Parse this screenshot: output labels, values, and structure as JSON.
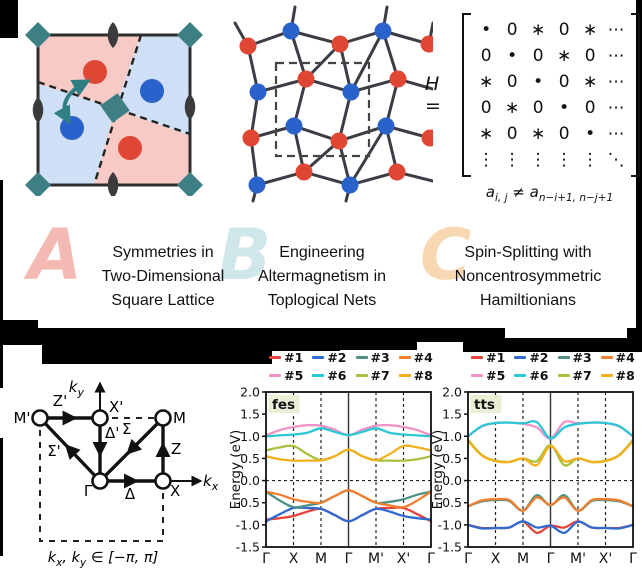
{
  "figure": {
    "panels": [
      {
        "id": "a",
        "letter": "A",
        "letter_color": "#f4b9b3",
        "caption_lines": [
          "Symmetries in",
          "Two-Dimensional",
          "Square Lattice"
        ]
      },
      {
        "id": "b",
        "letter": "B",
        "letter_color": "#cfe6ea",
        "caption_lines": [
          "Engineering",
          "Altermagnetism in",
          "Toplogical Nets"
        ]
      },
      {
        "id": "c",
        "letter": "C",
        "letter_color": "#f8d8b2",
        "caption_lines": [
          "Spin-Splitting with",
          "Noncentrosymmetric",
          "Hamiltionians"
        ]
      }
    ],
    "hamiltonian": {
      "label_h": "H",
      "label_eq": "=",
      "matrix_rows": [
        [
          "•",
          "0",
          "∗",
          "0",
          "∗",
          "⋯"
        ],
        [
          "0",
          "•",
          "0",
          "∗",
          "0",
          "⋯"
        ],
        [
          "∗",
          "0",
          "•",
          "0",
          "∗",
          "⋯"
        ],
        [
          "0",
          "∗",
          "0",
          "•",
          "0",
          "⋯"
        ],
        [
          "∗",
          "0",
          "∗",
          "0",
          "•",
          "⋯"
        ],
        [
          "⋮",
          "⋮",
          "⋮",
          "⋮",
          "⋮",
          "⋱"
        ]
      ],
      "condition": {
        "a1": "a",
        "sub1": "i, j",
        "neq": " ≠ ",
        "a2": "a",
        "sub2": "n−i+1, n−j+1"
      }
    },
    "bz": {
      "ky": {
        "base": "k",
        "sub": "y"
      },
      "kx": {
        "base": "k",
        "sub": "x"
      },
      "points": {
        "mp": "M'",
        "xp": "X'",
        "m": "M",
        "g": "Γ",
        "x": "X"
      },
      "path_labels": {
        "zp": "Z'",
        "dp": "Δ'",
        "sig": "Σ",
        "z": "Z",
        "sigp": "Σ'",
        "d": "Δ"
      },
      "footer": {
        "t1": "k",
        "s1": "x",
        "t2": ", k",
        "s2": "y",
        "t3": " ∈ [−π, π]"
      }
    }
  },
  "chart_data": [
    {
      "type": "line",
      "title": "fes",
      "ylabel": "Energy (eV)",
      "ylim": [
        -1.5,
        2.0
      ],
      "yticks": [
        "2.0",
        "1.5",
        "1.0",
        "0.5",
        "0.0",
        "-0.5",
        "-1.0",
        "-1.5"
      ],
      "xticklabels": [
        "Γ",
        "X",
        "M",
        "Γ",
        "M'",
        "X'",
        "Γ"
      ],
      "zero_line": 0.0,
      "grid": "dashed-verticals-at-symmetry-points",
      "legend_position": "top",
      "title_badge_bg": "#e9eed6",
      "series": [
        {
          "name": "#1",
          "color": "#e8433a",
          "values": [
            -0.88,
            -0.85,
            -0.8,
            -0.7,
            -0.64,
            -0.78,
            -0.92,
            -0.78,
            -0.64,
            -0.62,
            -0.62,
            -0.76,
            -0.92
          ]
        },
        {
          "name": "#2",
          "color": "#2e6ad1",
          "values": [
            -0.92,
            -0.76,
            -0.62,
            -0.62,
            -0.64,
            -0.78,
            -0.92,
            -0.78,
            -0.64,
            -0.7,
            -0.8,
            -0.85,
            -0.88
          ]
        },
        {
          "name": "#3",
          "color": "#4e9184",
          "values": [
            -0.25,
            -0.45,
            -0.6,
            -0.56,
            -0.5,
            -0.35,
            -0.22,
            -0.35,
            -0.5,
            -0.48,
            -0.42,
            -0.32,
            -0.25
          ]
        },
        {
          "name": "#4",
          "color": "#f08030",
          "values": [
            -0.25,
            -0.32,
            -0.42,
            -0.48,
            -0.5,
            -0.35,
            -0.22,
            -0.35,
            -0.5,
            -0.56,
            -0.6,
            -0.45,
            -0.25
          ]
        },
        {
          "name": "#5",
          "color": "#f293c6",
          "values": [
            1.02,
            1.14,
            1.21,
            1.25,
            1.24,
            1.15,
            1.02,
            1.15,
            1.24,
            1.25,
            1.21,
            1.14,
            1.02
          ]
        },
        {
          "name": "#6",
          "color": "#2bc7d4",
          "values": [
            1.0,
            1.02,
            1.04,
            1.08,
            1.18,
            1.1,
            1.03,
            1.1,
            1.18,
            1.08,
            1.04,
            1.02,
            1.0
          ]
        },
        {
          "name": "#7",
          "color": "#a6c13c",
          "values": [
            0.68,
            0.75,
            0.78,
            0.6,
            0.46,
            0.55,
            0.7,
            0.55,
            0.46,
            0.45,
            0.45,
            0.48,
            0.55
          ]
        },
        {
          "name": "#8",
          "color": "#f3b01c",
          "values": [
            0.55,
            0.48,
            0.45,
            0.45,
            0.46,
            0.55,
            0.7,
            0.55,
            0.46,
            0.6,
            0.78,
            0.75,
            0.68
          ]
        }
      ]
    },
    {
      "type": "line",
      "title": "tts",
      "ylabel": "Energy (eV)",
      "ylim": [
        -1.5,
        2.0
      ],
      "yticks": [
        "2.0",
        "1.5",
        "1.0",
        "0.5",
        "0.0",
        "-0.5",
        "-1.0",
        "-1.5"
      ],
      "xticklabels": [
        "Γ",
        "X",
        "M",
        "Γ",
        "M'",
        "X'",
        "Γ"
      ],
      "zero_line": 0.0,
      "grid": "dashed-verticals-at-symmetry-points",
      "legend_position": "top",
      "title_badge_bg": "#e9eed6",
      "series": [
        {
          "name": "#1",
          "color": "#e8433a",
          "values": [
            -1.0,
            -1.07,
            -1.07,
            -1.06,
            -0.93,
            -1.18,
            -1.02,
            -1.06,
            -0.92,
            -1.06,
            -1.07,
            -1.07,
            -1.0
          ]
        },
        {
          "name": "#2",
          "color": "#2e6ad1",
          "values": [
            -1.0,
            -1.08,
            -1.07,
            -1.06,
            -0.92,
            -1.06,
            -1.02,
            -1.18,
            -0.93,
            -1.06,
            -1.07,
            -1.08,
            -1.0
          ]
        },
        {
          "name": "#3",
          "color": "#4e9184",
          "values": [
            -0.58,
            -0.47,
            -0.44,
            -0.46,
            -0.68,
            -0.33,
            -0.56,
            -0.33,
            -0.68,
            -0.46,
            -0.44,
            -0.47,
            -0.58
          ]
        },
        {
          "name": "#4",
          "color": "#f08030",
          "values": [
            -0.58,
            -0.45,
            -0.42,
            -0.44,
            -0.68,
            -0.38,
            -0.55,
            -0.38,
            -0.68,
            -0.44,
            -0.42,
            -0.45,
            -0.58
          ]
        },
        {
          "name": "#5",
          "color": "#f293c6",
          "values": [
            1.0,
            1.22,
            1.3,
            1.31,
            1.28,
            1.2,
            0.95,
            1.32,
            1.29,
            1.31,
            1.3,
            1.22,
            1.0
          ]
        },
        {
          "name": "#6",
          "color": "#2bc7d4",
          "values": [
            1.0,
            1.23,
            1.3,
            1.31,
            1.29,
            1.32,
            0.95,
            1.2,
            1.28,
            1.31,
            1.3,
            1.23,
            1.0
          ]
        },
        {
          "name": "#7",
          "color": "#a6c13c",
          "values": [
            0.92,
            0.58,
            0.45,
            0.42,
            0.5,
            0.44,
            0.8,
            0.35,
            0.5,
            0.42,
            0.45,
            0.58,
            0.92
          ]
        },
        {
          "name": "#8",
          "color": "#f3b01c",
          "values": [
            0.9,
            0.57,
            0.44,
            0.42,
            0.5,
            0.35,
            0.78,
            0.44,
            0.5,
            0.42,
            0.44,
            0.57,
            0.9
          ]
        }
      ]
    }
  ]
}
